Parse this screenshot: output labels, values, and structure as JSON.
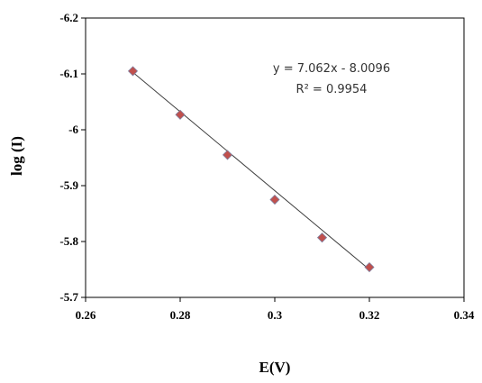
{
  "chart_data": {
    "type": "scatter",
    "title": "",
    "xlabel": "E(V)",
    "ylabel": "log (I)",
    "xlim": [
      0.26,
      0.34
    ],
    "ylim": [
      -5.7,
      -6.2
    ],
    "xticks": [
      "0.26",
      "0.28",
      "0.3",
      "0.32",
      "0.34"
    ],
    "yticks": [
      "-6.2",
      "-6.1",
      "-6",
      "-5.9",
      "-5.8",
      "-5.7"
    ],
    "x": [
      0.27,
      0.28,
      0.29,
      0.3,
      0.31,
      0.32
    ],
    "y": [
      -6.105,
      -6.027,
      -5.955,
      -5.875,
      -5.807,
      -5.754
    ],
    "marker_color": "#c0504d",
    "marker_stroke": "#7f7f9f",
    "trendline": {
      "slope": 7.062,
      "intercept": -8.0096,
      "color": "#404040",
      "equation": "y = 7.062x - 8.0096",
      "r_squared": "R² = 0.9954"
    },
    "grid": false,
    "legend": "none"
  }
}
